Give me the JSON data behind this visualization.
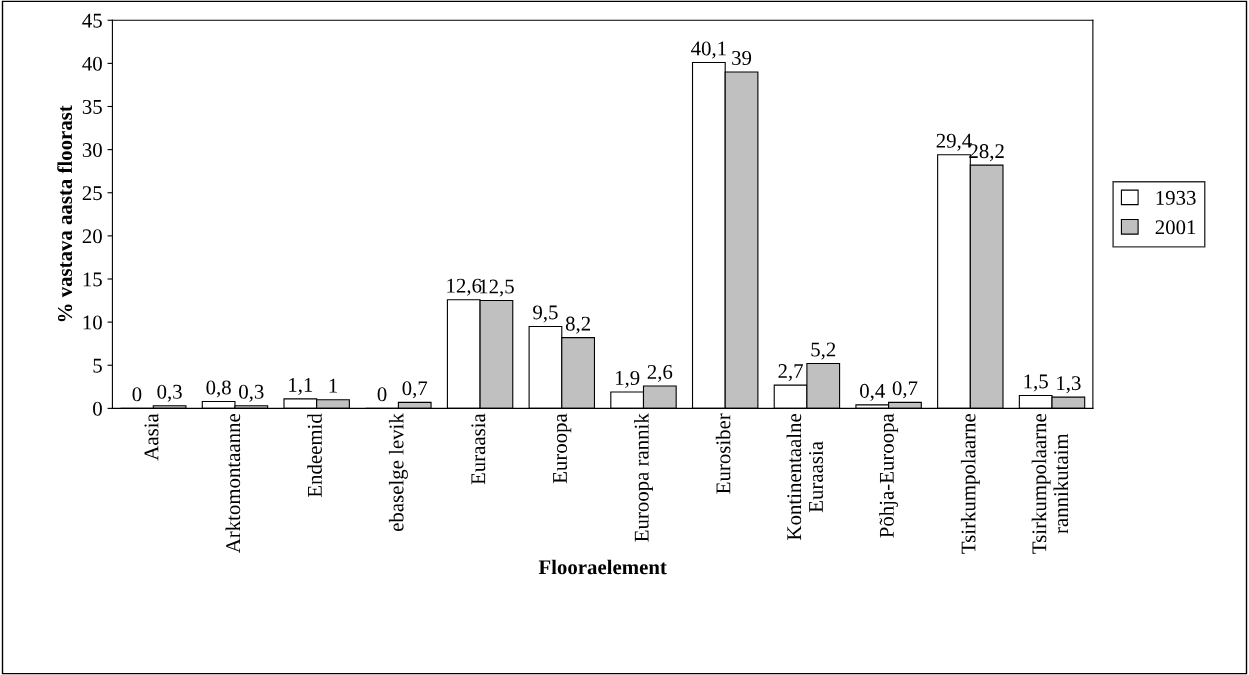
{
  "chart_data": {
    "type": "bar",
    "xlabel": "Flooraelement",
    "ylabel": "% vastava aasta floorast",
    "categories": [
      "Aasia",
      "Arktomontaanne",
      "Endeemid",
      "ebaselge levik",
      "Euraasia",
      "Euroopa",
      "Euroopa rannik",
      "Eurosiber",
      "Kontinentaalne\nEuraasia",
      "Põhja-Euroopa",
      "Tsirkumpolaarne",
      "Tsirkumpolaarne\nrannikutaim"
    ],
    "series": [
      {
        "name": "1933",
        "color": "#ffffff",
        "values": [
          0,
          0.8,
          1.1,
          0,
          12.6,
          9.5,
          1.9,
          40.1,
          2.7,
          0.4,
          29.4,
          1.5
        ],
        "value_labels": [
          "0",
          "0,8",
          "1,1",
          "0",
          "12,6",
          "9,5",
          "1,9",
          "40,1",
          "2,7",
          "0,4",
          "29,4",
          "1,5"
        ]
      },
      {
        "name": "2001",
        "color": "#c0c0c0",
        "values": [
          0.3,
          0.3,
          1,
          0.7,
          12.5,
          8.2,
          2.6,
          39,
          5.2,
          0.7,
          28.2,
          1.3
        ],
        "value_labels": [
          "0,3",
          "0,3",
          "1",
          "0,7",
          "12,5",
          "8,2",
          "2,6",
          "39",
          "5,2",
          "0,7",
          "28,2",
          "1,3"
        ]
      }
    ],
    "ylim": [
      0,
      45
    ],
    "yticks": [
      0,
      5,
      10,
      15,
      20,
      25,
      30,
      35,
      40,
      45
    ],
    "grid": false,
    "legend": "right"
  }
}
